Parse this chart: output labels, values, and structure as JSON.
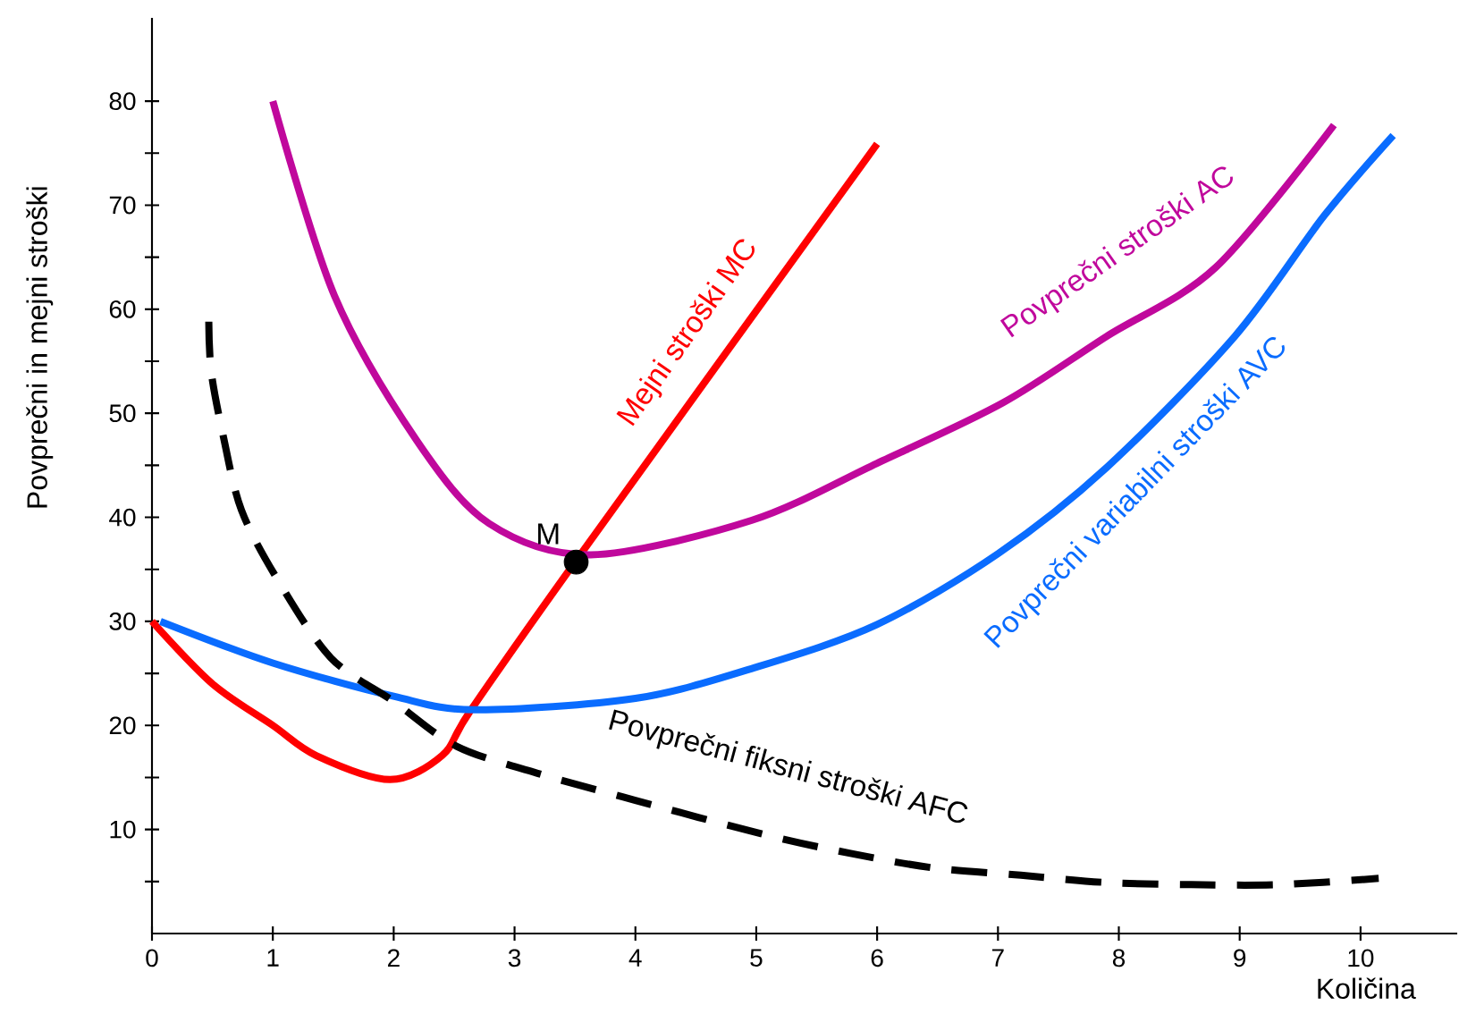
{
  "chart_data": {
    "type": "line",
    "xlabel": "Količina",
    "ylabel": "Povprečni in mejni stroški",
    "xlim": [
      0,
      10.8
    ],
    "ylim": [
      0,
      88
    ],
    "xticks": [
      0,
      1,
      2,
      3,
      4,
      5,
      6,
      7,
      8,
      9,
      10
    ],
    "yticks": [
      {
        "value": 5,
        "label": null
      },
      10,
      {
        "value": 15,
        "label": null
      },
      20,
      {
        "value": 25,
        "label": null
      },
      30,
      {
        "value": 35,
        "label": null
      },
      40,
      {
        "value": 45,
        "label": null
      },
      50,
      {
        "value": 55,
        "label": null
      },
      60,
      {
        "value": 65,
        "label": null
      },
      70,
      {
        "value": 75,
        "label": null
      },
      80
    ],
    "series": [
      {
        "name": "Mejni stroški MC",
        "color": "#ff0000",
        "line_style": "solid",
        "x": [
          0,
          0.5,
          1,
          1.36,
          1.97,
          2.4,
          2.64,
          3.5,
          6
        ],
        "values": [
          30,
          24,
          20,
          17.1,
          14.8,
          17.1,
          21.5,
          35.7,
          75.9
        ]
      },
      {
        "name": "Povprečni stroški AC",
        "color": "#c0089c",
        "line_style": "solid",
        "x": [
          1,
          1.51,
          2.19,
          2.79,
          3.63,
          4.96,
          6,
          7.04,
          7.9,
          8.8,
          9.78
        ],
        "values": [
          80,
          61.3,
          47.4,
          39.4,
          36.4,
          39.7,
          45.2,
          51,
          57.4,
          64,
          77.7
        ]
      },
      {
        "name": "Povprečni variabilni stroški AVC",
        "color": "#0a6cff",
        "line_style": "solid",
        "x": [
          0.07,
          1,
          2,
          2.67,
          4,
          5,
          6,
          7,
          7.9,
          8.96,
          9.7,
          10.27
        ],
        "values": [
          30,
          26,
          22.8,
          21.5,
          22.6,
          25.6,
          29.7,
          36.5,
          44.8,
          57.4,
          69,
          76.7
        ]
      },
      {
        "name": "Povprečni fiksni stroški AFC",
        "color": "#000000",
        "line_style": "dashed",
        "x": [
          0.47,
          0.49,
          0.59,
          0.74,
          1.04,
          1.48,
          2,
          2.52,
          3.19,
          4,
          5.07,
          5.78,
          6.47,
          7.19,
          7.9,
          8.6,
          9.33,
          10.15
        ],
        "values": [
          58.8,
          54,
          47.8,
          40.7,
          34,
          26.5,
          22.3,
          18,
          15.4,
          12.8,
          9.5,
          7.7,
          6.3,
          5.6,
          4.9,
          4.7,
          4.7,
          5.3
        ]
      },
      {
        "type": "scatter",
        "marker": "circle",
        "color": "#000000",
        "x": [
          3.51
        ],
        "values": [
          35.7
        ]
      }
    ],
    "annotations": [
      {
        "text": "M",
        "x": 3.51,
        "y": 35.7
      }
    ]
  }
}
